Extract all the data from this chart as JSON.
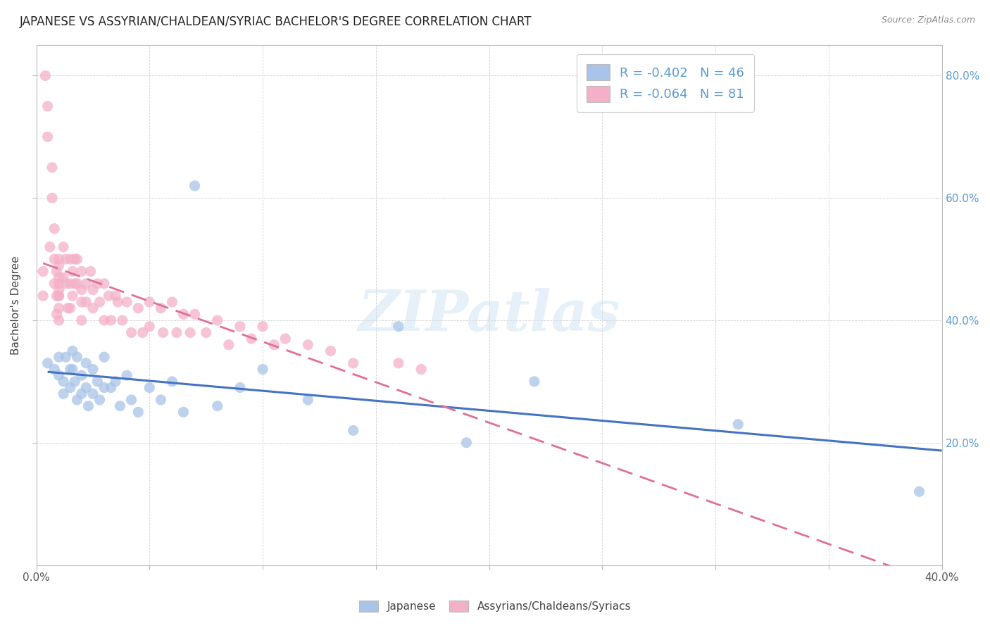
{
  "title": "JAPANESE VS ASSYRIAN/CHALDEAN/SYRIAC BACHELOR'S DEGREE CORRELATION CHART",
  "source": "Source: ZipAtlas.com",
  "ylabel": "Bachelor's Degree",
  "watermark": "ZIPatlas",
  "legend_r1": "-0.402",
  "legend_n1": "46",
  "legend_r2": "-0.064",
  "legend_n2": "81",
  "xmin": 0.0,
  "xmax": 0.4,
  "ymin": 0.0,
  "ymax": 0.85,
  "xtick_left_label": "0.0%",
  "xtick_right_label": "40.0%",
  "ytick_labels": [
    "20.0%",
    "40.0%",
    "60.0%",
    "80.0%"
  ],
  "ytick_values": [
    0.2,
    0.4,
    0.6,
    0.8
  ],
  "color_japanese": "#a8c4e8",
  "color_assyrian": "#f4b0c8",
  "color_line_japanese": "#4472c4",
  "color_line_assyrian": "#e07090",
  "title_fontsize": 12,
  "axis_label_fontsize": 11,
  "tick_fontsize": 11,
  "legend_fontsize": 13,
  "japanese_x": [
    0.005,
    0.008,
    0.01,
    0.01,
    0.012,
    0.012,
    0.013,
    0.015,
    0.015,
    0.016,
    0.016,
    0.017,
    0.018,
    0.018,
    0.02,
    0.02,
    0.022,
    0.022,
    0.023,
    0.025,
    0.025,
    0.027,
    0.028,
    0.03,
    0.03,
    0.033,
    0.035,
    0.037,
    0.04,
    0.042,
    0.045,
    0.05,
    0.055,
    0.06,
    0.065,
    0.07,
    0.08,
    0.09,
    0.1,
    0.12,
    0.14,
    0.16,
    0.19,
    0.22,
    0.31,
    0.39
  ],
  "japanese_y": [
    0.33,
    0.32,
    0.31,
    0.34,
    0.3,
    0.28,
    0.34,
    0.32,
    0.29,
    0.35,
    0.32,
    0.3,
    0.27,
    0.34,
    0.31,
    0.28,
    0.33,
    0.29,
    0.26,
    0.32,
    0.28,
    0.3,
    0.27,
    0.34,
    0.29,
    0.29,
    0.3,
    0.26,
    0.31,
    0.27,
    0.25,
    0.29,
    0.27,
    0.3,
    0.25,
    0.62,
    0.26,
    0.29,
    0.32,
    0.27,
    0.22,
    0.39,
    0.2,
    0.3,
    0.23,
    0.12
  ],
  "assyrian_x": [
    0.003,
    0.003,
    0.004,
    0.005,
    0.005,
    0.006,
    0.007,
    0.007,
    0.008,
    0.008,
    0.008,
    0.009,
    0.009,
    0.009,
    0.01,
    0.01,
    0.01,
    0.01,
    0.01,
    0.01,
    0.01,
    0.01,
    0.01,
    0.012,
    0.012,
    0.013,
    0.013,
    0.014,
    0.015,
    0.015,
    0.015,
    0.016,
    0.016,
    0.017,
    0.017,
    0.018,
    0.018,
    0.02,
    0.02,
    0.02,
    0.02,
    0.022,
    0.022,
    0.024,
    0.025,
    0.025,
    0.027,
    0.028,
    0.03,
    0.03,
    0.032,
    0.033,
    0.035,
    0.036,
    0.038,
    0.04,
    0.042,
    0.045,
    0.047,
    0.05,
    0.05,
    0.055,
    0.056,
    0.06,
    0.062,
    0.065,
    0.068,
    0.07,
    0.075,
    0.08,
    0.085,
    0.09,
    0.095,
    0.1,
    0.105,
    0.11,
    0.12,
    0.13,
    0.14,
    0.16,
    0.17
  ],
  "assyrian_y": [
    0.48,
    0.44,
    0.8,
    0.75,
    0.7,
    0.52,
    0.65,
    0.6,
    0.55,
    0.5,
    0.46,
    0.48,
    0.44,
    0.41,
    0.5,
    0.46,
    0.44,
    0.42,
    0.4,
    0.47,
    0.44,
    0.49,
    0.45,
    0.52,
    0.47,
    0.5,
    0.46,
    0.42,
    0.5,
    0.46,
    0.42,
    0.48,
    0.44,
    0.5,
    0.46,
    0.5,
    0.46,
    0.48,
    0.45,
    0.43,
    0.4,
    0.46,
    0.43,
    0.48,
    0.45,
    0.42,
    0.46,
    0.43,
    0.46,
    0.4,
    0.44,
    0.4,
    0.44,
    0.43,
    0.4,
    0.43,
    0.38,
    0.42,
    0.38,
    0.43,
    0.39,
    0.42,
    0.38,
    0.43,
    0.38,
    0.41,
    0.38,
    0.41,
    0.38,
    0.4,
    0.36,
    0.39,
    0.37,
    0.39,
    0.36,
    0.37,
    0.36,
    0.35,
    0.33,
    0.33,
    0.32
  ],
  "bg_color": "#ffffff",
  "grid_color": "#cccccc",
  "right_ytick_color": "#5b9bd5",
  "bottom_label_japanese": "Japanese",
  "bottom_label_assyrian": "Assyrians/Chaldeans/Syriacs"
}
